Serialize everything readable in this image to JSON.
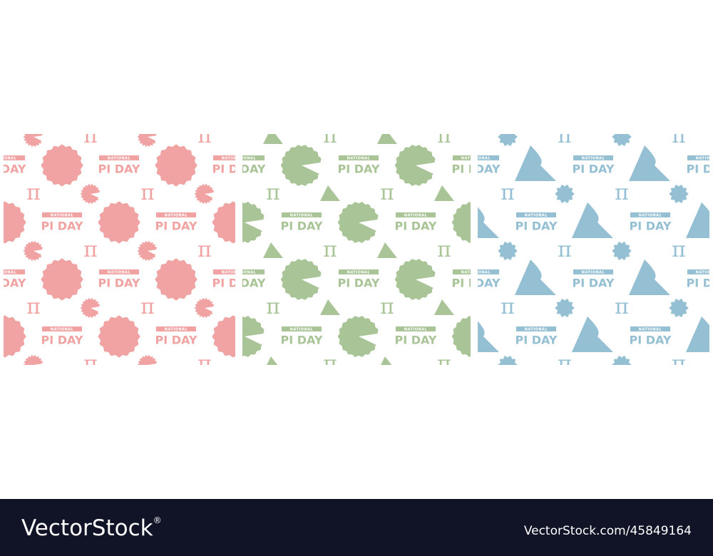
{
  "pattern_text": {
    "ribbon": "NATIONAL",
    "title": "PI DAY",
    "symbol": "π"
  },
  "footer": {
    "brand": "VectorStock",
    "registered": "®",
    "url": "VectorStock.com/45849164"
  }
}
